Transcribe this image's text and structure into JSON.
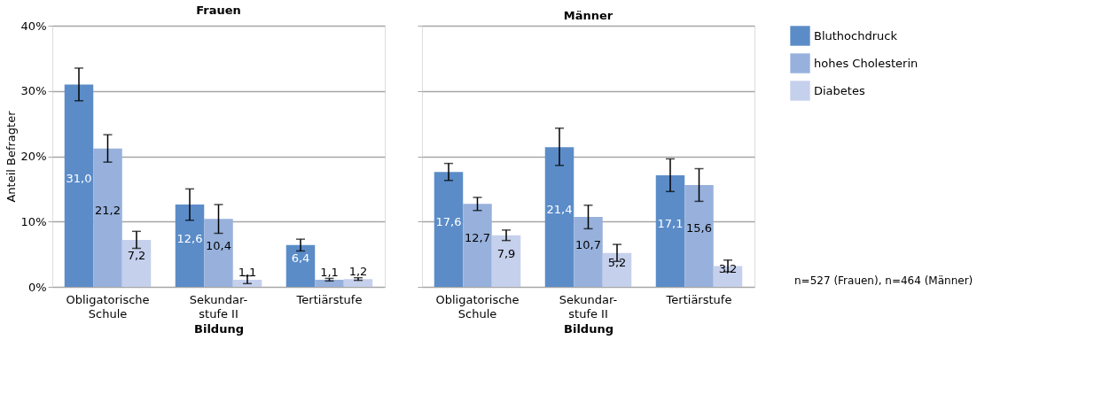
{
  "chart_data": [
    {
      "type": "bar",
      "title": "Frauen",
      "xlabel": "Bildung",
      "ylabel": "Anteil Befragter",
      "categories": [
        "Obligatorische\nSchule",
        "Sekundar-\nstufe II",
        "Tertiärstufe"
      ],
      "series": [
        {
          "color": "#5b8cc8",
          "values": [
            31.0,
            12.6,
            6.4
          ],
          "value_labels": [
            "31,0",
            "12,6",
            "6,4"
          ],
          "errors": [
            [
              28.5,
              33.5
            ],
            [
              10.2,
              15.0
            ],
            [
              5.5,
              7.3
            ]
          ]
        },
        {
          "color": "#97b1dc",
          "values": [
            21.2,
            10.4,
            1.1
          ],
          "value_labels": [
            "21,2",
            "10,4",
            "1,1"
          ],
          "errors": [
            [
              19.1,
              23.3
            ],
            [
              8.2,
              12.6
            ],
            [
              0.9,
              1.3
            ]
          ]
        },
        {
          "color": "#c5d0ec",
          "values": [
            7.2,
            1.1,
            1.2
          ],
          "value_labels": [
            "7,2",
            "1,1",
            "1,2"
          ],
          "errors": [
            [
              5.9,
              8.5
            ],
            [
              0.5,
              1.7
            ],
            [
              1.0,
              1.4
            ]
          ]
        }
      ],
      "ylim": [
        0,
        40
      ],
      "yticks": [
        {
          "value": 0,
          "label": "0%"
        },
        {
          "value": 10,
          "label": "10%"
        },
        {
          "value": 20,
          "label": "20%"
        },
        {
          "value": 30,
          "label": "30%"
        },
        {
          "value": 40,
          "label": "40%"
        }
      ],
      "grid": "y"
    },
    {
      "type": "bar",
      "title": "Männer",
      "xlabel": "Bildung",
      "categories": [
        "Obligatorische\nSchule",
        "Sekundar-\nstufe II",
        "Tertiärstufe"
      ],
      "series": [
        {
          "name": "Bluthochdruck",
          "color": "#5b8cc8",
          "values": [
            17.6,
            21.4,
            17.1
          ],
          "value_labels": [
            "17,6",
            "21,4",
            "17,1"
          ],
          "errors": [
            [
              16.3,
              18.9
            ],
            [
              18.6,
              24.3
            ],
            [
              14.6,
              19.6
            ]
          ]
        },
        {
          "name": "hohes Cholesterin",
          "color": "#97b1dc",
          "values": [
            12.7,
            10.7,
            15.6
          ],
          "value_labels": [
            "12,7",
            "10,7",
            "15,6"
          ],
          "errors": [
            [
              11.7,
              13.7
            ],
            [
              8.9,
              12.5
            ],
            [
              13.1,
              18.1
            ]
          ]
        },
        {
          "name": "Diabetes",
          "color": "#c5d0ec",
          "values": [
            7.9,
            5.2,
            3.2
          ],
          "value_labels": [
            "7,9",
            "5,2",
            "3,2"
          ],
          "errors": [
            [
              7.1,
              8.7
            ],
            [
              3.9,
              6.5
            ],
            [
              2.3,
              4.1
            ]
          ]
        }
      ],
      "ylim": [
        0,
        40
      ],
      "yticks": [
        {
          "value": 0,
          "label": null
        },
        {
          "value": 10,
          "label": null
        },
        {
          "value": 20,
          "label": null
        },
        {
          "value": 30,
          "label": null
        },
        {
          "value": 40,
          "label": null
        }
      ],
      "grid": "y",
      "legend": "top right",
      "tick_labels": "x",
      "annotations": [
        "n=527 (Frauen), n=464 (Männer)"
      ]
    }
  ]
}
